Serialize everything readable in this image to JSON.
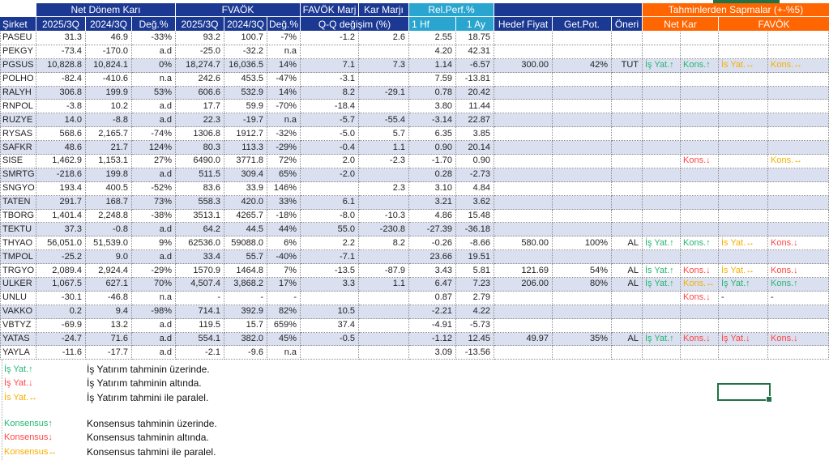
{
  "colors": {
    "header_blue": "#1b3893",
    "header_cyan": "#29a5cf",
    "header_orange": "#ff6500",
    "row_band": "#dbe0f0",
    "above_green": "#26b573",
    "below_red": "#ff4545",
    "parallel_amber": "#f5b000",
    "selection_green": "#217346"
  },
  "header": {
    "group_row": {
      "net_donem_kari": "Net Dönem Karı",
      "fvaok": "FVAÖK",
      "favok_marj": "FAVÖK Marj",
      "kar_marji": "Kar Marjı",
      "rel_perf": "Rel.Perf.%",
      "tahmin": "Tahminlerden Sapmalar (+-%5)"
    },
    "column_row": {
      "sirket": "Şirket",
      "nk_2025": "2025/3Q",
      "nk_2024": "2024/3Q",
      "nk_deg": "Değ.%",
      "fv_2025": "2025/3Q",
      "fv_2024": "2024/3Q",
      "fv_deg": "Değ.%",
      "qq": "Q-Q değişim (%)",
      "hf1": "1 Hf",
      "ay1": "1 Ay",
      "hedef_fiyat": "Hedef Fiyat",
      "get_pot": "Get.Pot.",
      "oneri": "Öneri",
      "net_kar": "Net Kar",
      "favok": "FAVÖK"
    }
  },
  "table": {
    "rows": [
      {
        "cells": [
          "PASEU",
          "31.3",
          "46.9",
          "-33%",
          "93.2",
          "100.7",
          "-7%",
          "-1.2",
          "2.6",
          "2.55",
          "18.75",
          "",
          "",
          "",
          "",
          "",
          "",
          ""
        ],
        "tc": [
          "",
          "",
          "",
          ""
        ]
      },
      {
        "cells": [
          "PEKGY",
          "-73.4",
          "-170.0",
          "a.d",
          "-25.0",
          "-32.2",
          "n.a",
          "",
          "",
          "4.20",
          "42.31",
          "",
          "",
          "",
          "",
          "",
          "",
          ""
        ],
        "tc": [
          "",
          "",
          "",
          ""
        ]
      },
      {
        "cells": [
          "PGSUS",
          "10,828.8",
          "10,824.1",
          "0%",
          "18,274.7",
          "16,036.5",
          "14%",
          "7.1",
          "7.3",
          "1.14",
          "-6.57",
          "300.00",
          "42%",
          "TUT",
          "İş Yat.↑",
          "Kons.↑",
          "İs Yat.↔",
          "Kons.↔"
        ],
        "tc": [
          "g",
          "g",
          "o",
          "o"
        ]
      },
      {
        "cells": [
          "POLHO",
          "-82.4",
          "-410.6",
          "n.a",
          "242.6",
          "453.5",
          "-47%",
          "-3.1",
          "",
          "7.59",
          "-13.81",
          "",
          "",
          "",
          "",
          "",
          "",
          ""
        ],
        "tc": [
          "",
          "",
          "",
          ""
        ]
      },
      {
        "cells": [
          "RALYH",
          "306.8",
          "199.9",
          "53%",
          "606.6",
          "532.9",
          "14%",
          "8.2",
          "-29.1",
          "0.78",
          "20.42",
          "",
          "",
          "",
          "",
          "",
          "",
          ""
        ],
        "tc": [
          "",
          "",
          "",
          ""
        ]
      },
      {
        "cells": [
          "RNPOL",
          "-3.8",
          "10.2",
          "a.d",
          "17.7",
          "59.9",
          "-70%",
          "-18.4",
          "",
          "3.80",
          "11.44",
          "",
          "",
          "",
          "",
          "",
          "",
          ""
        ],
        "tc": [
          "",
          "",
          "",
          ""
        ]
      },
      {
        "cells": [
          "RUZYE",
          "14.0",
          "-8.8",
          "a.d",
          "22.3",
          "-19.7",
          "n.a",
          "-5.7",
          "-55.4",
          "-3.14",
          "22.87",
          "",
          "",
          "",
          "",
          "",
          "",
          ""
        ],
        "tc": [
          "",
          "",
          "",
          ""
        ]
      },
      {
        "cells": [
          "RYSAS",
          "568.6",
          "2,165.7",
          "-74%",
          "1306.8",
          "1912.7",
          "-32%",
          "-5.0",
          "5.7",
          "6.35",
          "3.85",
          "",
          "",
          "",
          "",
          "",
          "",
          ""
        ],
        "tc": [
          "",
          "",
          "",
          ""
        ]
      },
      {
        "cells": [
          "SAFKR",
          "48.6",
          "21.7",
          "124%",
          "80.3",
          "113.3",
          "-29%",
          "-0.4",
          "1.1",
          "0.90",
          "20.14",
          "",
          "",
          "",
          "",
          "",
          "",
          ""
        ],
        "tc": [
          "",
          "",
          "",
          ""
        ]
      },
      {
        "cells": [
          "SISE",
          "1,462.9",
          "1,153.1",
          "27%",
          "6490.0",
          "3771.8",
          "72%",
          "2.0",
          "-2.3",
          "-1.70",
          "0.90",
          "",
          "",
          "",
          "",
          "Kons.↓",
          "",
          "Kons.↔"
        ],
        "tc": [
          "",
          "r",
          "",
          "o"
        ]
      },
      {
        "cells": [
          "SMRTG",
          "-218.6",
          "199.8",
          "a.d",
          "511.5",
          "309.4",
          "65%",
          "-2.0",
          "",
          "0.28",
          "-2.73",
          "",
          "",
          "",
          "",
          "",
          "",
          ""
        ],
        "tc": [
          "",
          "",
          "",
          ""
        ]
      },
      {
        "cells": [
          "SNGYO",
          "193.4",
          "400.5",
          "-52%",
          "83.6",
          "33.9",
          "146%",
          "",
          "2.3",
          "3.10",
          "4.84",
          "",
          "",
          "",
          "",
          "",
          "",
          ""
        ],
        "tc": [
          "",
          "",
          "",
          ""
        ]
      },
      {
        "cells": [
          "TATEN",
          "291.7",
          "168.7",
          "73%",
          "558.3",
          "420.0",
          "33%",
          "6.1",
          "",
          "3.21",
          "3.62",
          "",
          "",
          "",
          "",
          "",
          "",
          ""
        ],
        "tc": [
          "",
          "",
          "",
          ""
        ]
      },
      {
        "cells": [
          "TBORG",
          "1,401.4",
          "2,248.8",
          "-38%",
          "3513.1",
          "4265.7",
          "-18%",
          "-8.0",
          "-10.3",
          "4.86",
          "15.48",
          "",
          "",
          "",
          "",
          "",
          "",
          ""
        ],
        "tc": [
          "",
          "",
          "",
          ""
        ]
      },
      {
        "cells": [
          "TEKTU",
          "37.3",
          "-0.8",
          "a.d",
          "64.2",
          "44.5",
          "44%",
          "55.0",
          "-230.8",
          "-27.39",
          "-36.18",
          "",
          "",
          "",
          "",
          "",
          "",
          ""
        ],
        "tc": [
          "",
          "",
          "",
          ""
        ]
      },
      {
        "cells": [
          "THYAO",
          "56,051.0",
          "51,539.0",
          "9%",
          "62536.0",
          "59088.0",
          "6%",
          "2.2",
          "8.2",
          "-0.26",
          "-8.66",
          "580.00",
          "100%",
          "AL",
          "İş Yat.↑",
          "Kons.↑",
          "İs Yat.↔",
          "Kons.↓"
        ],
        "tc": [
          "g",
          "g",
          "o",
          "r"
        ]
      },
      {
        "cells": [
          "TMPOL",
          "-25.2",
          "9.0",
          "a.d",
          "33.4",
          "55.7",
          "-40%",
          "-7.1",
          "",
          "23.66",
          "19.51",
          "",
          "",
          "",
          "",
          "",
          "",
          ""
        ],
        "tc": [
          "",
          "",
          "",
          ""
        ]
      },
      {
        "cells": [
          "TRGYO",
          "2,089.4",
          "2,924.4",
          "-29%",
          "1570.9",
          "1464.8",
          "7%",
          "-13.5",
          "-87.9",
          "3.43",
          "5.81",
          "121.69",
          "54%",
          "AL",
          "İs Yat.↑",
          "Kons.↓",
          "İs Yat.↔",
          "Kons.↓"
        ],
        "tc": [
          "g",
          "r",
          "o",
          "r"
        ]
      },
      {
        "cells": [
          "ULKER",
          "1,067.5",
          "627.1",
          "70%",
          "4,507.4",
          "3,868.2",
          "17%",
          "3.3",
          "1.1",
          "6.47",
          "7.23",
          "206.00",
          "80%",
          "AL",
          "İş Yat.↑",
          "Kons.↔",
          "İş Yat.↑",
          "Kons.↑"
        ],
        "tc": [
          "g",
          "o",
          "g",
          "g"
        ]
      },
      {
        "cells": [
          "UNLU",
          "-30.1",
          "-46.8",
          "n.a",
          "-",
          "-",
          "-",
          "",
          "",
          "0.87",
          "2.79",
          "",
          "",
          "",
          "",
          "Kons.↓",
          "-",
          "-"
        ],
        "tc": [
          "",
          "r",
          "d",
          "d"
        ]
      },
      {
        "cells": [
          "VAKKO",
          "0.2",
          "9.4",
          "-98%",
          "714.1",
          "392.9",
          "82%",
          "10.5",
          "",
          "-2.21",
          "4.22",
          "",
          "",
          "",
          "",
          "",
          "",
          ""
        ],
        "tc": [
          "",
          "",
          "",
          ""
        ]
      },
      {
        "cells": [
          "VBTYZ",
          "-69.9",
          "13.2",
          "a.d",
          "119.5",
          "15.7",
          "659%",
          "37.4",
          "",
          "-4.91",
          "-5.73",
          "",
          "",
          "",
          "",
          "",
          "",
          ""
        ],
        "tc": [
          "",
          "",
          "",
          ""
        ]
      },
      {
        "cells": [
          "YATAS",
          "-24.7",
          "71.6",
          "a.d",
          "554.1",
          "382.0",
          "45%",
          "-0.5",
          "",
          "-1.12",
          "12.45",
          "49.97",
          "35%",
          "AL",
          "İş Yat.↑",
          "Kons.↓",
          "İş Yat.↓",
          "Kons.↓"
        ],
        "tc": [
          "g",
          "r",
          "r",
          "r"
        ]
      },
      {
        "cells": [
          "YAYLA",
          "-11.6",
          "-17.7",
          "a.d",
          "-2.1",
          "-9.6",
          "n.a",
          "",
          "",
          "3.09",
          "-13.56",
          "",
          "",
          "",
          "",
          "",
          "",
          ""
        ],
        "tc": [
          "",
          "",
          "",
          ""
        ]
      }
    ]
  },
  "legend": {
    "isyat": [
      {
        "label": "İş Yat.↑",
        "color": "g",
        "desc": "İş Yatırım tahminin üzerinde."
      },
      {
        "label": "İş Yat.↓",
        "color": "r",
        "desc": "İş Yatırım tahminin altında."
      },
      {
        "label": "İs Yat.↔",
        "color": "o",
        "desc": "İş Yatırım tahmini ile paralel."
      }
    ],
    "konsensus": [
      {
        "label": "Konsensus↑",
        "color": "g",
        "desc": "Konsensus tahminin üzerinde."
      },
      {
        "label": "Konsensus↓",
        "color": "r",
        "desc": "Konsensus tahminin altında."
      },
      {
        "label": "Konsensus↔",
        "color": "o",
        "desc": "Konsensus tahmini ile paralel."
      }
    ]
  }
}
